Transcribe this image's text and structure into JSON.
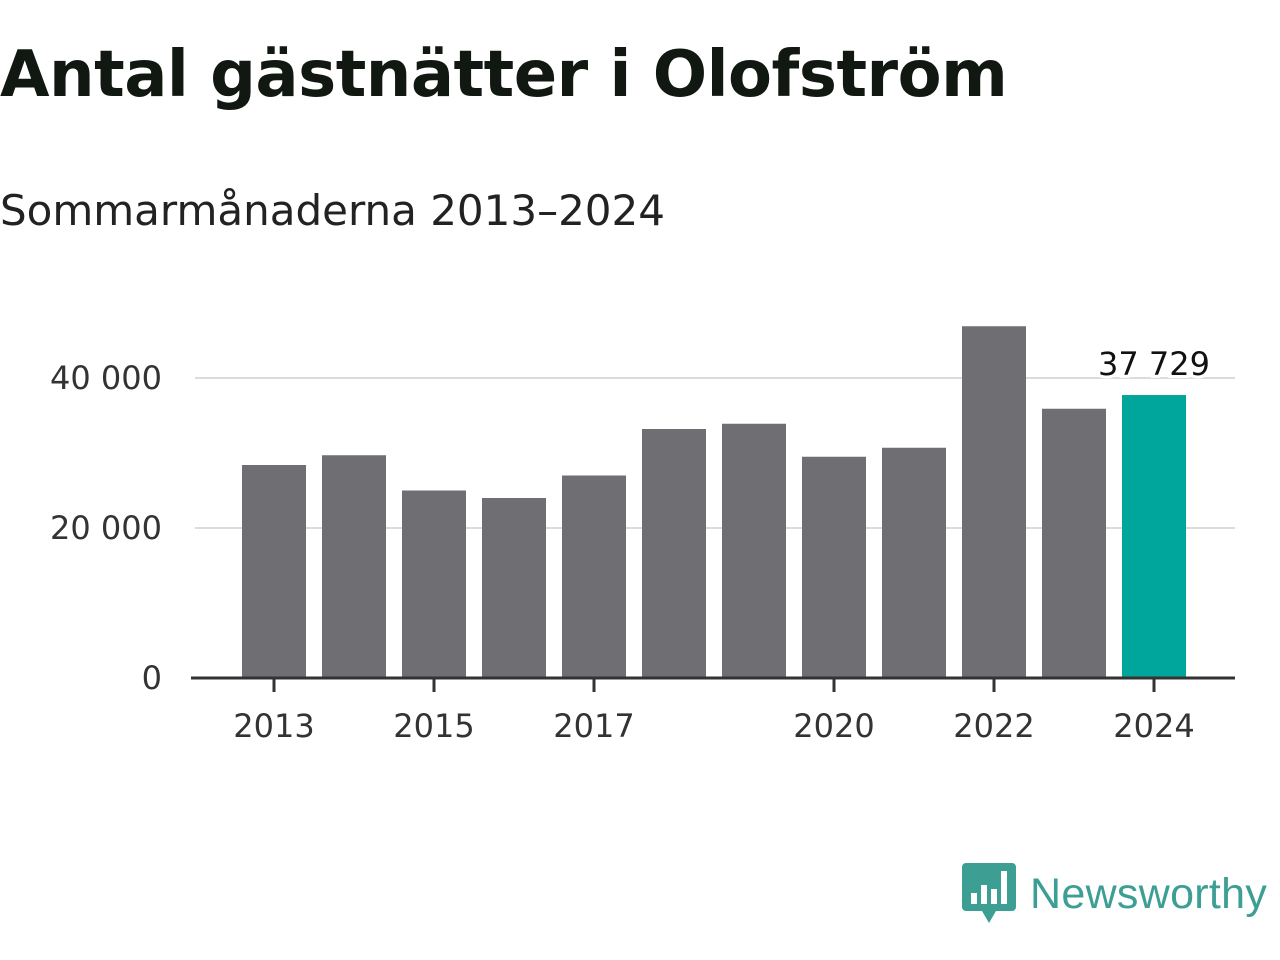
{
  "header": {
    "title": "Antal gästnätter i Olofström",
    "subtitle": "Sommarmånaderna 2013–2024"
  },
  "chart_data": {
    "type": "bar",
    "title": "Antal gästnätter i Olofström",
    "subtitle": "Sommarmånaderna 2013–2024",
    "xlabel": "",
    "ylabel": "",
    "categories": [
      "2013",
      "2014",
      "2015",
      "2016",
      "2017",
      "2018",
      "2019",
      "2020",
      "2021",
      "2022",
      "2023",
      "2024"
    ],
    "values": [
      28400,
      29700,
      25000,
      24000,
      27000,
      33200,
      33900,
      29500,
      30700,
      46900,
      35900,
      37729
    ],
    "ylim": [
      0,
      50000
    ],
    "y_ticks": [
      {
        "value": 0,
        "label": "0"
      },
      {
        "value": 20000,
        "label": "20 000"
      },
      {
        "value": 40000,
        "label": "40 000"
      }
    ],
    "x_tick_labels": [
      {
        "category": "2013",
        "label": "2013"
      },
      {
        "category": "2015",
        "label": "2015"
      },
      {
        "category": "2017",
        "label": "2017"
      },
      {
        "category": "2020",
        "label": "2020"
      },
      {
        "category": "2022",
        "label": "2022"
      },
      {
        "category": "2024",
        "label": "2024"
      }
    ],
    "highlight": {
      "category": "2024",
      "label": "37 729"
    },
    "grid": true,
    "colors": {
      "bar": "#6f6e73",
      "highlight": "#00a59b",
      "grid": "#dcdcdc",
      "axis": "#333333"
    }
  },
  "brand": {
    "name": "Newsworthy",
    "icon": "newsworthy-logo-icon",
    "color": "#3d9e93"
  }
}
